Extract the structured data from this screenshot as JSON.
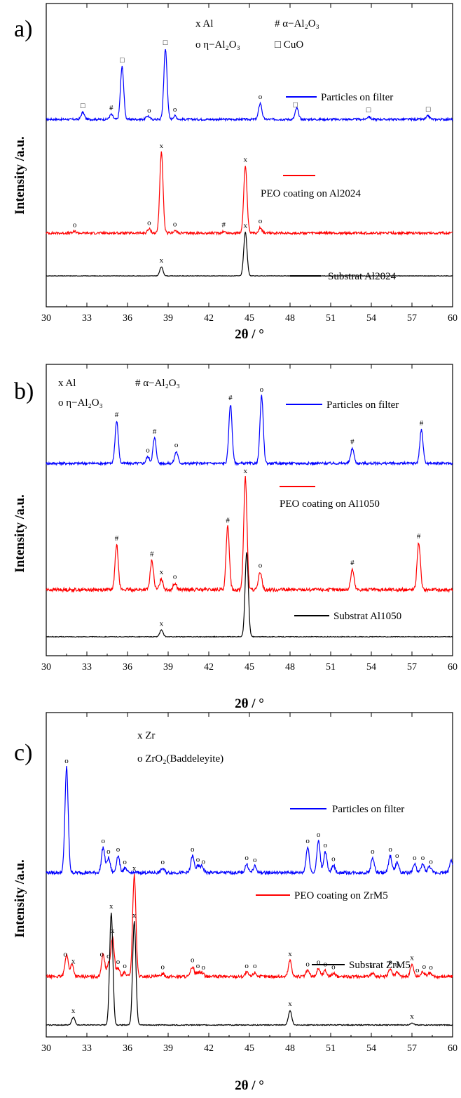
{
  "chart_data": [
    {
      "type": "line",
      "panel": "a)",
      "xlabel": "2θ / °",
      "ylabel": "Intensity /a.u.",
      "xlim": [
        30,
        60
      ],
      "xticks": [
        30,
        33,
        36,
        39,
        42,
        45,
        48,
        51,
        54,
        57,
        60
      ],
      "phase_legend": [
        {
          "symbol": "x",
          "label": "Al"
        },
        {
          "symbol": "#",
          "label": "α−Al₂O₃"
        },
        {
          "symbol": "o",
          "label": "η−Al₂O₃"
        },
        {
          "symbol": "□",
          "label": "CuO"
        }
      ],
      "series": [
        {
          "name": "Particles on filter",
          "color": "#0000ff",
          "baseline": 0.0,
          "peaks": [
            [
              32.7,
              0.1
            ],
            [
              34.8,
              0.07
            ],
            [
              35.6,
              0.75
            ],
            [
              37.5,
              0.05
            ],
            [
              38.8,
              1.0
            ],
            [
              39.5,
              0.05
            ],
            [
              45.8,
              0.23
            ],
            [
              48.5,
              0.16
            ],
            [
              53.8,
              0.04
            ],
            [
              58.2,
              0.05
            ]
          ],
          "markers": [
            [
              32.7,
              "□"
            ],
            [
              34.8,
              "#"
            ],
            [
              35.6,
              "□"
            ],
            [
              37.6,
              "o"
            ],
            [
              38.8,
              "□"
            ],
            [
              39.5,
              "o"
            ],
            [
              45.8,
              "o"
            ],
            [
              48.4,
              "□"
            ],
            [
              53.8,
              "□"
            ],
            [
              58.2,
              "□"
            ]
          ]
        },
        {
          "name": "PEO coating on Al2024",
          "color": "#ff0000",
          "baseline": 0.0,
          "peaks": [
            [
              32.1,
              0.02
            ],
            [
              37.6,
              0.05
            ],
            [
              38.5,
              1.0
            ],
            [
              39.5,
              0.03
            ],
            [
              43.1,
              0.02
            ],
            [
              44.7,
              0.83
            ],
            [
              45.8,
              0.07
            ]
          ],
          "markers": [
            [
              32.1,
              "o"
            ],
            [
              37.6,
              "o"
            ],
            [
              38.5,
              "x"
            ],
            [
              39.5,
              "o"
            ],
            [
              43.1,
              "#"
            ],
            [
              44.7,
              "x"
            ],
            [
              45.8,
              "o"
            ]
          ]
        },
        {
          "name": "Substrat Al2024",
          "color": "#000000",
          "baseline": 0.0,
          "peaks": [
            [
              38.5,
              0.16
            ],
            [
              44.7,
              0.78
            ]
          ],
          "markers": [
            [
              38.5,
              "x"
            ],
            [
              44.7,
              "x"
            ]
          ]
        }
      ]
    },
    {
      "type": "line",
      "panel": "b)",
      "xlabel": "2θ / °",
      "ylabel": "Intensity /a.u.",
      "xlim": [
        30,
        60
      ],
      "xticks": [
        30,
        33,
        36,
        39,
        42,
        45,
        48,
        51,
        54,
        57,
        60
      ],
      "phase_legend": [
        {
          "symbol": "x",
          "label": "Al"
        },
        {
          "symbol": "#",
          "label": "α−Al₂O₃"
        },
        {
          "symbol": "o",
          "label": "η−Al₂O₃"
        }
      ],
      "series": [
        {
          "name": "Particles on filter",
          "color": "#0000ff",
          "baseline": 0.0,
          "peaks": [
            [
              35.2,
              0.5
            ],
            [
              37.5,
              0.08
            ],
            [
              38.0,
              0.3
            ],
            [
              39.6,
              0.14
            ],
            [
              43.6,
              0.7
            ],
            [
              45.9,
              0.8
            ],
            [
              52.6,
              0.18
            ],
            [
              57.7,
              0.4
            ]
          ],
          "markers": [
            [
              35.2,
              "#"
            ],
            [
              37.5,
              "o"
            ],
            [
              38.0,
              "#"
            ],
            [
              39.6,
              "o"
            ],
            [
              43.6,
              "#"
            ],
            [
              45.9,
              "o"
            ],
            [
              52.6,
              "#"
            ],
            [
              57.7,
              "#"
            ]
          ]
        },
        {
          "name": "PEO coating on Al1050",
          "color": "#ff0000",
          "baseline": 0.0,
          "peaks": [
            [
              35.2,
              0.4
            ],
            [
              37.8,
              0.26
            ],
            [
              38.5,
              0.1
            ],
            [
              39.5,
              0.06
            ],
            [
              43.4,
              0.56
            ],
            [
              44.7,
              1.0
            ],
            [
              45.8,
              0.16
            ],
            [
              52.6,
              0.18
            ],
            [
              57.5,
              0.42
            ]
          ],
          "markers": [
            [
              35.2,
              "#"
            ],
            [
              37.8,
              "#"
            ],
            [
              38.5,
              "x"
            ],
            [
              39.5,
              "o"
            ],
            [
              43.4,
              "#"
            ],
            [
              44.7,
              "x"
            ],
            [
              45.8,
              "o"
            ],
            [
              52.6,
              "#"
            ],
            [
              57.5,
              "#"
            ]
          ]
        },
        {
          "name": "Substrat Al1050",
          "color": "#000000",
          "baseline": 0.0,
          "peaks": [
            [
              38.5,
              0.08
            ],
            [
              44.8,
              1.0
            ]
          ],
          "markers": [
            [
              38.5,
              "x"
            ]
          ]
        }
      ]
    },
    {
      "type": "line",
      "panel": "c)",
      "xlabel": "2θ / °",
      "ylabel": "Intensity /a.u.",
      "xlim": [
        30,
        60
      ],
      "xticks": [
        30,
        33,
        36,
        39,
        42,
        45,
        48,
        51,
        54,
        57,
        60
      ],
      "phase_legend": [
        {
          "symbol": "x",
          "label": "Zr"
        },
        {
          "symbol": "o",
          "label": "ZrO₂(Baddeleyite)"
        }
      ],
      "series": [
        {
          "name": "Particles on filter",
          "color": "#0000ff",
          "baseline": 0.0,
          "peaks": [
            [
              31.5,
              1.0
            ],
            [
              34.2,
              0.24
            ],
            [
              34.6,
              0.14
            ],
            [
              35.3,
              0.16
            ],
            [
              35.8,
              0.04
            ],
            [
              38.6,
              0.04
            ],
            [
              40.8,
              0.16
            ],
            [
              41.2,
              0.06
            ],
            [
              41.5,
              0.06
            ],
            [
              44.8,
              0.08
            ],
            [
              45.4,
              0.06
            ],
            [
              49.3,
              0.24
            ],
            [
              50.1,
              0.3
            ],
            [
              50.6,
              0.2
            ],
            [
              51.2,
              0.07
            ],
            [
              54.1,
              0.14
            ],
            [
              55.4,
              0.16
            ],
            [
              55.9,
              0.1
            ],
            [
              57.2,
              0.08
            ],
            [
              57.8,
              0.08
            ],
            [
              58.3,
              0.06
            ],
            [
              59.9,
              0.12
            ]
          ],
          "markers": [
            [
              31.5,
              "o"
            ],
            [
              34.2,
              "o"
            ],
            [
              34.6,
              "o"
            ],
            [
              35.3,
              "o"
            ],
            [
              35.8,
              "o"
            ],
            [
              38.6,
              "o"
            ],
            [
              40.8,
              "o"
            ],
            [
              41.2,
              "o"
            ],
            [
              41.6,
              "o"
            ],
            [
              44.8,
              "o"
            ],
            [
              45.4,
              "o"
            ],
            [
              49.3,
              "o"
            ],
            [
              50.1,
              "o"
            ],
            [
              50.6,
              "o"
            ],
            [
              51.2,
              "o"
            ],
            [
              54.1,
              "o"
            ],
            [
              55.4,
              "o"
            ],
            [
              55.9,
              "o"
            ],
            [
              57.2,
              "o"
            ],
            [
              57.8,
              "o"
            ],
            [
              58.4,
              "o"
            ]
          ]
        },
        {
          "name": "PEO coating on ZrM5",
          "color": "#ff0000",
          "baseline": 0.0,
          "peaks": [
            [
              31.5,
              0.22
            ],
            [
              31.9,
              0.12
            ],
            [
              34.2,
              0.22
            ],
            [
              34.6,
              0.12
            ],
            [
              34.9,
              0.38
            ],
            [
              35.3,
              0.08
            ],
            [
              35.8,
              0.04
            ],
            [
              36.5,
              1.0
            ],
            [
              38.6,
              0.03
            ],
            [
              40.8,
              0.1
            ],
            [
              41.2,
              0.04
            ],
            [
              41.5,
              0.04
            ],
            [
              44.8,
              0.04
            ],
            [
              45.4,
              0.04
            ],
            [
              48.0,
              0.16
            ],
            [
              49.3,
              0.06
            ],
            [
              50.1,
              0.08
            ],
            [
              50.6,
              0.06
            ],
            [
              51.2,
              0.03
            ],
            [
              54.1,
              0.04
            ],
            [
              55.4,
              0.08
            ],
            [
              55.9,
              0.05
            ],
            [
              57.0,
              0.12
            ],
            [
              57.8,
              0.05
            ],
            [
              58.3,
              0.04
            ]
          ],
          "markers": [
            [
              31.4,
              "o"
            ],
            [
              32.0,
              "x"
            ],
            [
              34.1,
              "o"
            ],
            [
              34.6,
              "o"
            ],
            [
              34.9,
              "x"
            ],
            [
              35.3,
              "o"
            ],
            [
              35.8,
              "o"
            ],
            [
              36.5,
              "x"
            ],
            [
              38.6,
              "o"
            ],
            [
              40.8,
              "o"
            ],
            [
              41.2,
              "o"
            ],
            [
              41.6,
              "o"
            ],
            [
              44.8,
              "o"
            ],
            [
              45.4,
              "o"
            ],
            [
              48.0,
              "x"
            ],
            [
              49.3,
              "o"
            ],
            [
              50.1,
              "o"
            ],
            [
              50.6,
              "o"
            ],
            [
              51.2,
              "o"
            ],
            [
              54.1,
              "o"
            ],
            [
              55.4,
              "o"
            ],
            [
              55.9,
              "o"
            ],
            [
              57.0,
              "x"
            ],
            [
              57.4,
              "o"
            ],
            [
              57.9,
              "o"
            ],
            [
              58.4,
              "o"
            ]
          ]
        },
        {
          "name": "Substrat ZrM5",
          "color": "#000000",
          "baseline": 0.0,
          "peaks": [
            [
              32.0,
              0.07
            ],
            [
              34.8,
              1.0
            ],
            [
              36.5,
              0.92
            ],
            [
              48.0,
              0.13
            ],
            [
              57.0,
              0.02
            ]
          ],
          "markers": [
            [
              32.0,
              "x"
            ],
            [
              34.8,
              "x"
            ],
            [
              36.5,
              "x"
            ],
            [
              48.0,
              "x"
            ],
            [
              57.0,
              "x"
            ]
          ]
        }
      ]
    }
  ]
}
